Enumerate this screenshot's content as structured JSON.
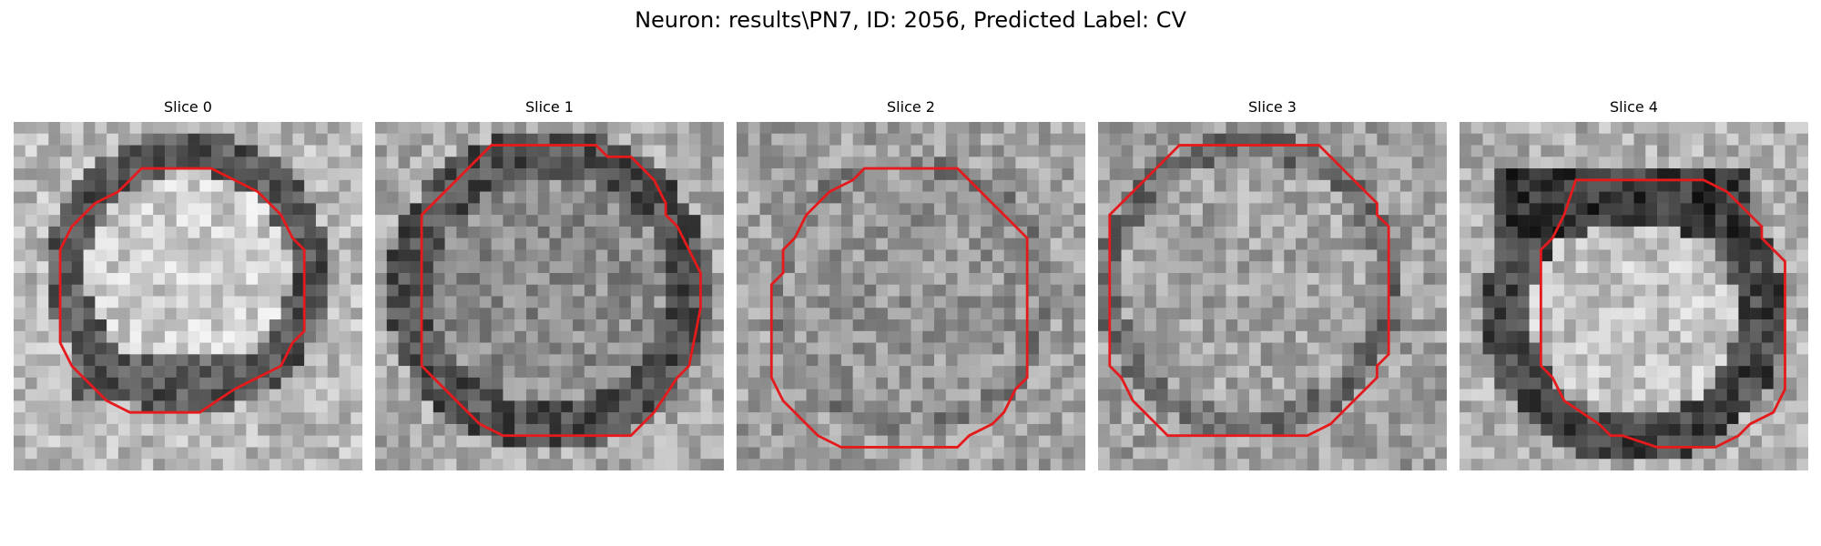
{
  "figure": {
    "title": "Neuron: results\\PN7, ID: 2056, Predicted Label: CV"
  },
  "panels": [
    {
      "title": "Slice 0"
    },
    {
      "title": "Slice 1"
    },
    {
      "title": "Slice 2"
    },
    {
      "title": "Slice 3"
    },
    {
      "title": "Slice 4"
    }
  ],
  "colors": {
    "contour": "#e41a1c",
    "background": "#ffffff"
  }
}
